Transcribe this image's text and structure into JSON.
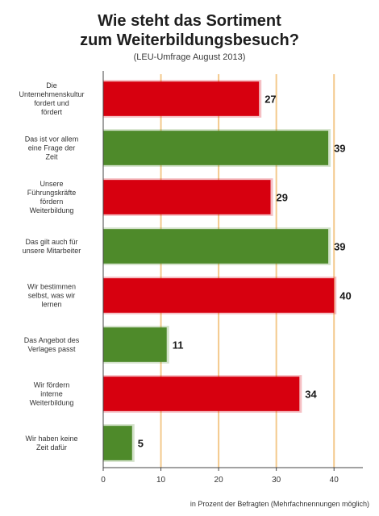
{
  "chart_data": {
    "type": "bar",
    "orientation": "horizontal",
    "title_lines": [
      "Wie steht das Sortiment",
      "zum Weiterbildungsbesuch?"
    ],
    "subtitle": "(LEU-Umfrage August 2013)",
    "categories": [
      "Die Unternehmenskultur fordert und fördert",
      "Das ist vor allem eine Frage der Zeit",
      "Unsere Führungskräfte fördern Weiterbildung",
      "Das gilt auch für unsere Mitarbeiter",
      "Wir bestimmen selbst, was wir lernen",
      "Das Angebot des Verlages passt",
      "Wir fördern interne Weiterbildung",
      "Wir haben keine Zeit dafür"
    ],
    "values": [
      27,
      39,
      29,
      39,
      40,
      11,
      34,
      5
    ],
    "bar_colors": [
      "#d7000f",
      "#4e8a2a",
      "#d7000f",
      "#4e8a2a",
      "#d7000f",
      "#4e8a2a",
      "#d7000f",
      "#4e8a2a"
    ],
    "xlim": [
      0,
      45
    ],
    "xticks": [
      0,
      10,
      20,
      30,
      40
    ],
    "grid": true,
    "grid_color": "#f3c98c",
    "footnote": "in Prozent der Befragten (Mehrfachnennungen möglich)"
  }
}
